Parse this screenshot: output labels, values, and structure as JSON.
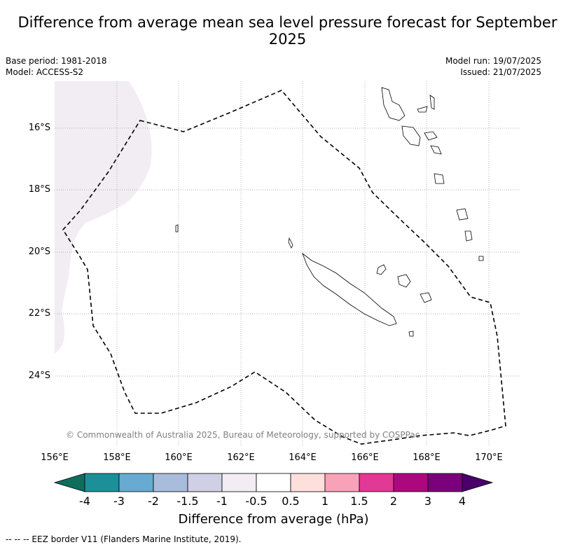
{
  "title": "Difference from average mean sea level pressure forecast for September 2025",
  "meta": {
    "base_period": "Base period: 1981-2018",
    "model": "Model: ACCESS-S2",
    "model_run": "Model run: 19/07/2025",
    "issued": "Issued: 21/07/2025"
  },
  "map": {
    "lat_labels": [
      "16°S",
      "18°S",
      "20°S",
      "22°S",
      "24°S"
    ],
    "lon_labels": [
      "156°E",
      "158°E",
      "160°E",
      "162°E",
      "164°E",
      "166°E",
      "168°E",
      "170°E"
    ],
    "copyright": "© Commonwealth of Australia 2025, Bureau of Meteorology, supported by COSPPac",
    "anomaly_fill_color": "#f1edf3",
    "eez_style": "dashed"
  },
  "colorbar": {
    "title": "Difference from average (hPa)",
    "ticks": [
      "-4",
      "-3",
      "-2",
      "-1.5",
      "-1",
      "-0.5",
      "0.5",
      "1",
      "1.5",
      "2",
      "3",
      "4"
    ],
    "colors": [
      "#1b9099",
      "#67aad2",
      "#a8bcdc",
      "#cfcfe6",
      "#f1edf3",
      "#ffffff",
      "#fddfdc",
      "#f9a1b8",
      "#e23896",
      "#ad0780",
      "#7b007c"
    ],
    "under_color": "#0e6e5e",
    "over_color": "#49006a"
  },
  "footer": "--  --  -- EEZ border V11 (Flanders Marine Institute, 2019)."
}
